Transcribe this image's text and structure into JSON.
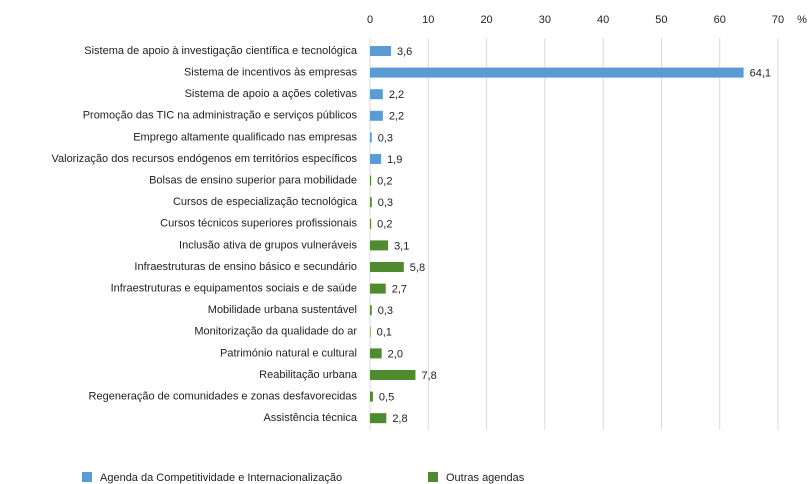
{
  "chart_data": {
    "type": "bar",
    "orientation": "horizontal",
    "categories": [
      "Sistema de apoio à investigação científica e tecnológica",
      "Sistema de incentivos às empresas",
      "Sistema de apoio a ações coletivas",
      "Promoção das TIC na administração e serviços públicos",
      "Emprego altamente qualificado nas empresas",
      "Valorização dos recursos endógenos em territórios específicos",
      "Bolsas de ensino superior para mobilidade",
      "Cursos de especialização tecnológica",
      "Cursos técnicos superiores profissionais",
      "Inclusão ativa de grupos vulneráveis",
      "Infraestruturas de ensino básico e secundário",
      "Infraestruturas e equipamentos sociais e de saúde",
      "Mobilidade urbana sustentável",
      "Monitorização da qualidade do ar",
      "Património natural e cultural",
      "Reabilitação urbana",
      "Regeneração de comunidades e zonas desfavorecidas",
      "Assistência técnica"
    ],
    "series": [
      {
        "name": "Agenda da Competitividade e Internacionalização",
        "color": "#5b9bd5",
        "values": [
          3.6,
          64.1,
          2.2,
          2.2,
          0.3,
          1.9,
          null,
          null,
          null,
          null,
          null,
          null,
          null,
          null,
          null,
          null,
          null,
          null
        ],
        "value_labels": [
          "3,6",
          "64,1",
          "2,2",
          "2,2",
          "0,3",
          "1,9",
          null,
          null,
          null,
          null,
          null,
          null,
          null,
          null,
          null,
          null,
          null,
          null
        ]
      },
      {
        "name": "Outras agendas",
        "color": "#4f8a2f",
        "values": [
          null,
          null,
          null,
          null,
          null,
          null,
          0.2,
          0.3,
          0.2,
          3.1,
          5.8,
          2.7,
          0.3,
          0.1,
          2.0,
          7.8,
          0.5,
          2.8
        ],
        "value_labels": [
          null,
          null,
          null,
          null,
          null,
          null,
          "0,2",
          "0,3",
          "0,2",
          "3,1",
          "5,8",
          "2,7",
          "0,3",
          "0,1",
          "2,0",
          "7,8",
          "0,5",
          "2,8"
        ]
      }
    ],
    "xlim": [
      0,
      70
    ],
    "xticks": [
      0,
      10,
      20,
      30,
      40,
      50,
      60,
      70
    ],
    "grid": true,
    "unit_label": "%",
    "legend": "bottom"
  }
}
